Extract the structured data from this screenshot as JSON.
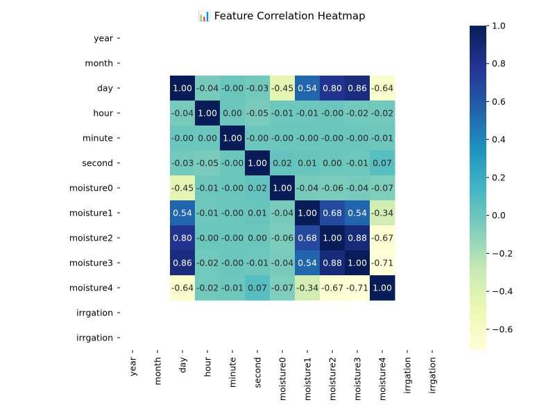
{
  "chart_data": {
    "type": "heatmap",
    "title": "📊 Feature Correlation Heatmap",
    "rows": [
      "year",
      "month",
      "day",
      "hour",
      "minute",
      "second",
      "moisture0",
      "moisture1",
      "moisture2",
      "moisture3",
      "moisture4",
      "irrgation",
      "irrgation"
    ],
    "cols": [
      "year",
      "month",
      "day",
      "hour",
      "minute",
      "second",
      "moisture0",
      "moisture1",
      "moisture2",
      "moisture3",
      "moisture4",
      "irrgation",
      "irrgation"
    ],
    "values": [
      [
        null,
        null,
        null,
        null,
        null,
        null,
        null,
        null,
        null,
        null,
        null,
        null,
        null
      ],
      [
        null,
        null,
        null,
        null,
        null,
        null,
        null,
        null,
        null,
        null,
        null,
        null,
        null
      ],
      [
        null,
        null,
        1.0,
        -0.04,
        -0.0,
        -0.03,
        -0.45,
        0.54,
        0.8,
        0.86,
        -0.64,
        null,
        null
      ],
      [
        null,
        null,
        -0.04,
        1.0,
        0.0,
        -0.05,
        -0.01,
        -0.01,
        -0.0,
        -0.02,
        -0.02,
        null,
        null
      ],
      [
        null,
        null,
        -0.0,
        0.0,
        1.0,
        -0.0,
        -0.0,
        -0.0,
        -0.0,
        -0.0,
        -0.01,
        null,
        null
      ],
      [
        null,
        null,
        -0.03,
        -0.05,
        -0.0,
        1.0,
        0.02,
        0.01,
        0.0,
        -0.01,
        0.07,
        null,
        null
      ],
      [
        null,
        null,
        -0.45,
        -0.01,
        -0.0,
        0.02,
        1.0,
        -0.04,
        -0.06,
        -0.04,
        -0.07,
        null,
        null
      ],
      [
        null,
        null,
        0.54,
        -0.01,
        -0.0,
        0.01,
        -0.04,
        1.0,
        0.68,
        0.54,
        -0.34,
        null,
        null
      ],
      [
        null,
        null,
        0.8,
        -0.0,
        -0.0,
        0.0,
        -0.06,
        0.68,
        1.0,
        0.88,
        -0.67,
        null,
        null
      ],
      [
        null,
        null,
        0.86,
        -0.02,
        -0.0,
        -0.01,
        -0.04,
        0.54,
        0.88,
        1.0,
        -0.71,
        null,
        null
      ],
      [
        null,
        null,
        -0.64,
        -0.02,
        -0.01,
        0.07,
        -0.07,
        -0.34,
        -0.67,
        -0.71,
        1.0,
        null,
        null
      ],
      [
        null,
        null,
        null,
        null,
        null,
        null,
        null,
        null,
        null,
        null,
        null,
        null,
        null
      ],
      [
        null,
        null,
        null,
        null,
        null,
        null,
        null,
        null,
        null,
        null,
        null,
        null,
        null
      ]
    ],
    "labels": [
      [
        null,
        null,
        null,
        null,
        null,
        null,
        null,
        null,
        null,
        null,
        null,
        null,
        null
      ],
      [
        null,
        null,
        null,
        null,
        null,
        null,
        null,
        null,
        null,
        null,
        null,
        null,
        null
      ],
      [
        null,
        null,
        "1.00",
        "-0.04",
        "-0.00",
        "-0.03",
        "-0.45",
        "0.54",
        "0.80",
        "0.86",
        "-0.64",
        null,
        null
      ],
      [
        null,
        null,
        "-0.04",
        "1.00",
        "0.00",
        "-0.05",
        "-0.01",
        "-0.01",
        "-0.00",
        "-0.02",
        "-0.02",
        null,
        null
      ],
      [
        null,
        null,
        "-0.00",
        "0.00",
        "1.00",
        "-0.00",
        "-0.00",
        "-0.00",
        "-0.00",
        "-0.00",
        "-0.01",
        null,
        null
      ],
      [
        null,
        null,
        "-0.03",
        "-0.05",
        "-0.00",
        "1.00",
        "0.02",
        "0.01",
        "0.00",
        "-0.01",
        "0.07",
        null,
        null
      ],
      [
        null,
        null,
        "-0.45",
        "-0.01",
        "-0.00",
        "0.02",
        "1.00",
        "-0.04",
        "-0.06",
        "-0.04",
        "-0.07",
        null,
        null
      ],
      [
        null,
        null,
        "0.54",
        "-0.01",
        "-0.00",
        "0.01",
        "-0.04",
        "1.00",
        "0.68",
        "0.54",
        "-0.34",
        null,
        null
      ],
      [
        null,
        null,
        "0.80",
        "-0.00",
        "-0.00",
        "0.00",
        "-0.06",
        "0.68",
        "1.00",
        "0.88",
        "-0.67",
        null,
        null
      ],
      [
        null,
        null,
        "0.86",
        "-0.02",
        "-0.00",
        "-0.01",
        "-0.04",
        "0.54",
        "0.88",
        "1.00",
        "-0.71",
        null,
        null
      ],
      [
        null,
        null,
        "-0.64",
        "-0.02",
        "-0.01",
        "0.07",
        "-0.07",
        "-0.34",
        "-0.67",
        "-0.71",
        "1.00",
        null,
        null
      ],
      [
        null,
        null,
        null,
        null,
        null,
        null,
        null,
        null,
        null,
        null,
        null,
        null,
        null
      ],
      [
        null,
        null,
        null,
        null,
        null,
        null,
        null,
        null,
        null,
        null,
        null,
        null,
        null
      ]
    ],
    "colorbar": {
      "min": -0.71,
      "max": 1.0,
      "ticks": [
        1.0,
        0.8,
        0.6,
        0.4,
        0.2,
        0.0,
        -0.2,
        -0.4,
        -0.6
      ],
      "tick_labels": [
        "1.0",
        "0.8",
        "0.6",
        "0.4",
        "0.2",
        "0.0",
        "−0.2",
        "−0.4",
        "−0.6"
      ]
    },
    "colormap": [
      "#ffffd9",
      "#edf8b1",
      "#c7e9b4",
      "#7fcdbb",
      "#41b6c4",
      "#1d91c0",
      "#225ea8",
      "#253494",
      "#081d58"
    ],
    "grid": false,
    "legend": "colorbar-right"
  }
}
